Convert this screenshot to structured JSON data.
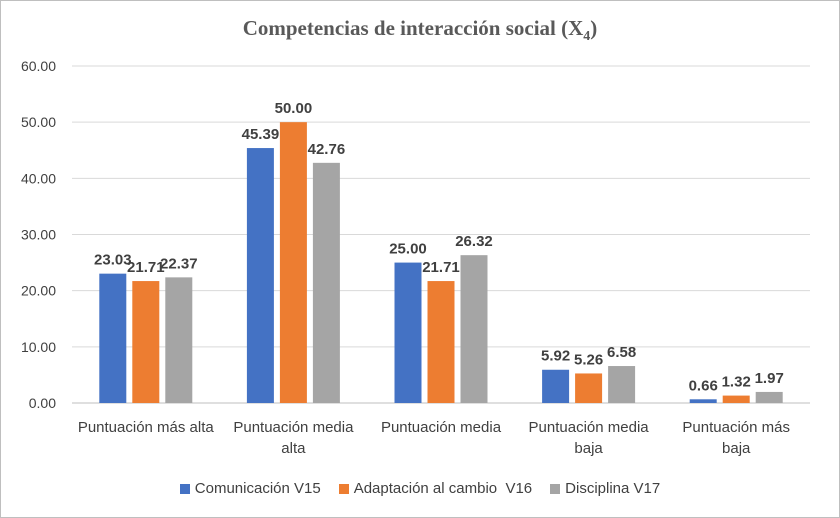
{
  "chart_data": {
    "type": "bar",
    "title": "Competencias de interacción social (X",
    "title_subscript": "4",
    "title_close": ")",
    "categories": [
      [
        "Puntuación más alta"
      ],
      [
        "Puntuación media",
        "alta"
      ],
      [
        "Puntuación media"
      ],
      [
        "Puntuación media",
        "baja"
      ],
      [
        "Puntuación más",
        "baja"
      ]
    ],
    "series": [
      {
        "name": "Comunicación V15",
        "color": "#4472c4",
        "values": [
          23.03,
          45.39,
          25.0,
          5.92,
          0.66
        ]
      },
      {
        "name": "Adaptación al cambio  V16",
        "color": "#ed7d31",
        "values": [
          21.71,
          50.0,
          21.71,
          5.26,
          1.32
        ]
      },
      {
        "name": "Disciplina V17",
        "color": "#a5a5a5",
        "values": [
          22.37,
          42.76,
          26.32,
          6.58,
          1.97
        ]
      }
    ],
    "ylim": [
      0,
      60
    ],
    "yticks": [
      "0.00",
      "10.00",
      "20.00",
      "30.00",
      "40.00",
      "50.00",
      "60.00"
    ],
    "grid": true,
    "legend_position": "bottom"
  }
}
